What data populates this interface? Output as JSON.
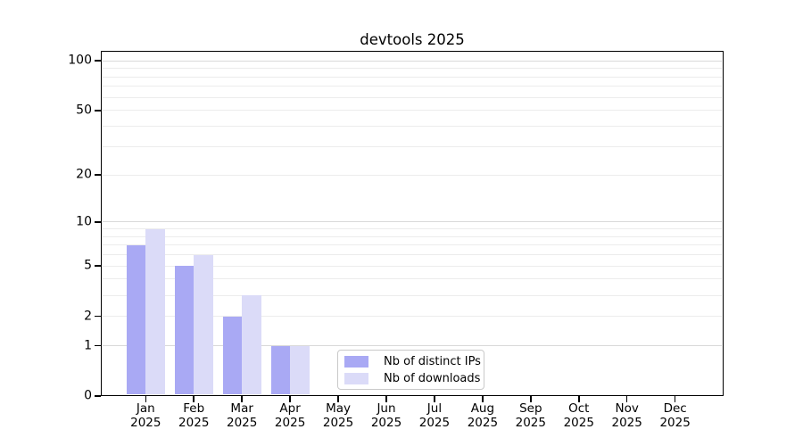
{
  "title": "devtools 2025",
  "chart_data": {
    "type": "bar",
    "title": "devtools 2025",
    "categories": [
      "Jan",
      "Feb",
      "Mar",
      "Apr",
      "May",
      "Jun",
      "Jul",
      "Aug",
      "Sep",
      "Oct",
      "Nov",
      "Dec"
    ],
    "category_year": "2025",
    "series": [
      {
        "name": "Nb of distinct IPs",
        "color": "#a9a9f4",
        "values": [
          7,
          5,
          2,
          1,
          0,
          0,
          0,
          0,
          0,
          0,
          0,
          0
        ]
      },
      {
        "name": "Nb of downloads",
        "color": "#dbdbf8",
        "values": [
          9,
          6,
          3,
          1,
          0,
          0,
          0,
          0,
          0,
          0,
          0,
          0
        ]
      }
    ],
    "yticks": [
      0,
      1,
      2,
      5,
      10,
      20,
      50,
      100
    ],
    "y_scale": "log10(1+v)",
    "ylim": [
      0,
      115
    ],
    "grid": "on",
    "gridlines_major": [
      1,
      10,
      100
    ],
    "gridlines_minor": [
      2,
      3,
      4,
      5,
      6,
      7,
      8,
      9,
      20,
      30,
      40,
      50,
      60,
      70,
      80,
      90
    ],
    "grid_color_major": "#d9d9d9",
    "grid_color_minor": "#ececec",
    "axis_color": "#000000",
    "background_color": "#ffffff",
    "legend_position": "lower-center-inside"
  }
}
